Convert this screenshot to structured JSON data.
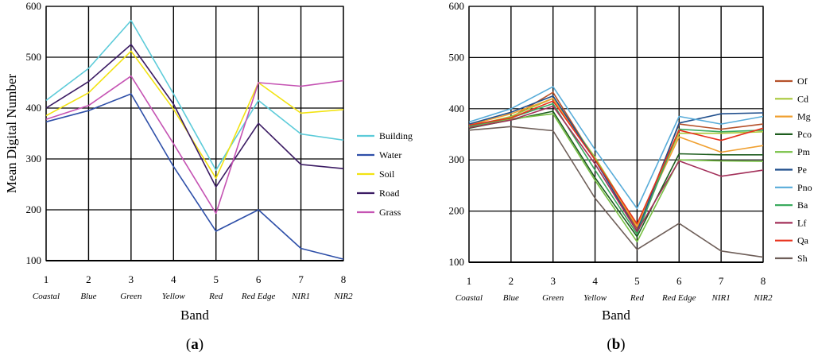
{
  "chart_data": [
    {
      "type": "line",
      "caption_letter": "a",
      "ylabel": "Mean Digital Number",
      "xlabel": "Band",
      "ylim": [
        100,
        600
      ],
      "yticks": [
        "100",
        "200",
        "300",
        "400",
        "500",
        "600"
      ],
      "x": [
        "1",
        "2",
        "3",
        "4",
        "5",
        "6",
        "7",
        "8"
      ],
      "band_names": [
        "Coastal",
        "Blue",
        "Green",
        "Yellow",
        "Red",
        "Red Edge",
        "NIR1",
        "NIR2"
      ],
      "legend_position": "right",
      "series": [
        {
          "name": "Building",
          "color": "#5ccbd9",
          "values": [
            415,
            478,
            572,
            428,
            278,
            415,
            349,
            337
          ]
        },
        {
          "name": "Water",
          "color": "#2e4fa8",
          "values": [
            373,
            395,
            428,
            285,
            158,
            200,
            124,
            103
          ]
        },
        {
          "name": "Soil",
          "color": "#f2e312",
          "values": [
            385,
            430,
            512,
            398,
            262,
            450,
            390,
            397
          ]
        },
        {
          "name": "Road",
          "color": "#3b1b63",
          "values": [
            400,
            452,
            525,
            408,
            245,
            370,
            289,
            281
          ]
        },
        {
          "name": "Grass",
          "color": "#c553b3",
          "values": [
            378,
            405,
            463,
            330,
            193,
            450,
            443,
            454
          ]
        }
      ]
    },
    {
      "type": "line",
      "caption_letter": "b",
      "ylabel": "",
      "xlabel": "Band",
      "ylim": [
        100,
        600
      ],
      "yticks": [
        "100",
        "200",
        "300",
        "400",
        "500",
        "600"
      ],
      "x": [
        "1",
        "2",
        "3",
        "4",
        "5",
        "6",
        "7",
        "8"
      ],
      "band_names": [
        "Coastal",
        "Blue",
        "Green",
        "Yellow",
        "Red",
        "Red Edge",
        "NIR1",
        "NIR2"
      ],
      "legend_position": "right",
      "series": [
        {
          "name": "Of",
          "color": "#b5512a",
          "values": [
            366,
            383,
            432,
            300,
            165,
            370,
            360,
            370
          ]
        },
        {
          "name": "Cd",
          "color": "#a8c83a",
          "values": [
            365,
            385,
            420,
            305,
            172,
            352,
            352,
            355
          ]
        },
        {
          "name": "Mg",
          "color": "#f0a030",
          "values": [
            368,
            390,
            420,
            300,
            170,
            345,
            315,
            328
          ]
        },
        {
          "name": "Pco",
          "color": "#1d5c1d",
          "values": [
            362,
            378,
            395,
            265,
            150,
            312,
            310,
            310
          ]
        },
        {
          "name": "Pm",
          "color": "#76c043",
          "values": [
            364,
            380,
            390,
            260,
            140,
            300,
            298,
            297
          ]
        },
        {
          "name": "Pe",
          "color": "#1f4e8c",
          "values": [
            370,
            393,
            425,
            300,
            160,
            372,
            390,
            392
          ]
        },
        {
          "name": "Pno",
          "color": "#58acd9",
          "values": [
            374,
            400,
            443,
            320,
            205,
            385,
            370,
            385
          ]
        },
        {
          "name": "Ba",
          "color": "#3aaa5e",
          "values": [
            366,
            382,
            410,
            280,
            155,
            360,
            355,
            358
          ]
        },
        {
          "name": "Lf",
          "color": "#a3305a",
          "values": [
            363,
            378,
            405,
            292,
            160,
            298,
            268,
            280
          ]
        },
        {
          "name": "Qa",
          "color": "#e8321e",
          "values": [
            368,
            382,
            415,
            300,
            175,
            358,
            338,
            362
          ]
        },
        {
          "name": "Sh",
          "color": "#6e5e58",
          "values": [
            358,
            365,
            357,
            225,
            125,
            176,
            122,
            110
          ]
        }
      ]
    }
  ]
}
